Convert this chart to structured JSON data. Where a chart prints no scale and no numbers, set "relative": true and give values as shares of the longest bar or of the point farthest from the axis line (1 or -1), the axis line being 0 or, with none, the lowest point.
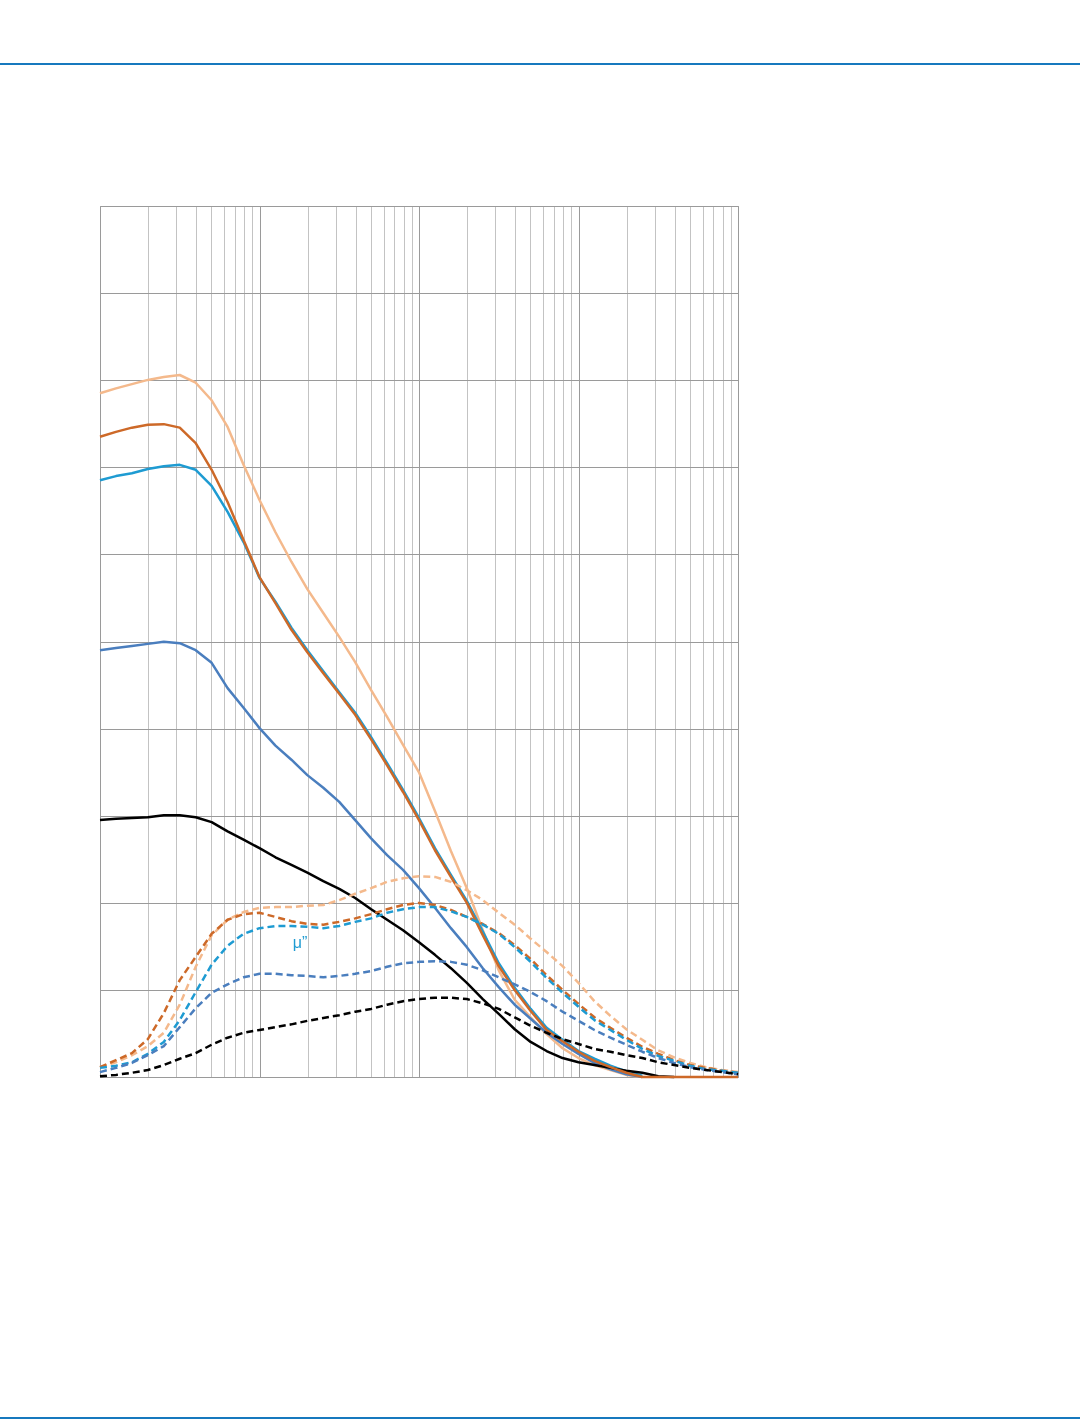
{
  "chart_data": {
    "type": "line",
    "relative": true,
    "grid": true,
    "line_style": "solid",
    "categories": [
      null,
      null,
      null,
      null,
      null,
      null,
      null,
      null,
      null,
      null,
      null,
      null,
      null,
      null,
      null,
      null,
      null,
      null,
      null,
      null,
      null,
      null,
      null,
      null,
      null,
      null,
      null,
      null,
      null,
      null,
      null,
      null,
      null,
      null,
      null,
      null,
      null,
      null,
      null,
      null,
      null
    ],
    "series": [
      {
        "color": "#f4b98c",
        "values": [
          0.974,
          0.981,
          0.987,
          0.993,
          0.997,
          1,
          0.989,
          0.964,
          0.926,
          0.872,
          0.822,
          0.776,
          0.734,
          0.695,
          0.661,
          0.627,
          0.591,
          0.551,
          0.513,
          0.473,
          0.434,
          0.379,
          0.322,
          0.269,
          0.209,
          0.152,
          0.11,
          0.085,
          0.061,
          0.041,
          0.027,
          0.017,
          0.01,
          0.003,
          0,
          null,
          null,
          null,
          null,
          null,
          null
        ]
      },
      {
        "color": "#1e9bd2",
        "values": [
          0.85,
          0.856,
          0.86,
          0.866,
          0.87,
          0.872,
          0.865,
          0.842,
          0.805,
          0.762,
          0.711,
          0.677,
          0.64,
          0.608,
          0.578,
          0.548,
          0.519,
          0.484,
          0.447,
          0.409,
          0.369,
          0.326,
          0.288,
          0.251,
          0.207,
          0.162,
          0.127,
          0.097,
          0.07,
          0.053,
          0.037,
          0.026,
          0.016,
          0.008,
          0.002,
          null,
          null,
          null,
          null,
          null,
          null
        ]
      },
      {
        "color": "#4a7ebe",
        "values": [
          0.608,
          0.611,
          0.614,
          0.617,
          0.62,
          0.618,
          0.608,
          0.59,
          0.554,
          0.526,
          0.497,
          0.472,
          0.452,
          0.43,
          0.412,
          0.392,
          0.366,
          0.34,
          0.316,
          0.295,
          0.269,
          0.241,
          0.212,
          0.185,
          0.155,
          0.128,
          0.103,
          0.083,
          0.063,
          0.047,
          0.033,
          0.02,
          0.011,
          0.004,
          0,
          null,
          null,
          null,
          null,
          null,
          null
        ]
      },
      {
        "color": "#000000",
        "values": [
          0.366,
          0.368,
          0.369,
          0.37,
          0.373,
          0.373,
          0.37,
          0.363,
          0.35,
          0.338,
          0.326,
          0.313,
          0.302,
          0.291,
          0.279,
          0.268,
          0.255,
          0.239,
          0.224,
          0.209,
          0.192,
          0.174,
          0.155,
          0.134,
          0.111,
          0.09,
          0.068,
          0.05,
          0.037,
          0.027,
          0.021,
          0.017,
          0.013,
          0.009,
          0.006,
          0.001,
          0,
          null,
          null,
          null,
          null
        ]
      },
      {
        "color": "#cd6928",
        "values": [
          0.912,
          0.919,
          0.925,
          0.929,
          0.93,
          0.925,
          0.903,
          0.865,
          0.819,
          0.765,
          0.712,
          0.675,
          0.637,
          0.605,
          0.575,
          0.546,
          0.516,
          0.481,
          0.444,
          0.406,
          0.366,
          0.323,
          0.285,
          0.248,
          0.202,
          0.158,
          0.124,
          0.094,
          0.067,
          0.051,
          0.036,
          0.023,
          0.014,
          0.006,
          0,
          0,
          0,
          0,
          0,
          0,
          0
        ]
      },
      {
        "color": "#f4b98c",
        "line_style": "dashed",
        "values": [
          0.014,
          0.021,
          0.031,
          0.044,
          0.063,
          0.103,
          0.157,
          0.202,
          0.224,
          0.235,
          0.241,
          0.242,
          0.242,
          0.244,
          0.245,
          0.252,
          0.261,
          0.269,
          0.278,
          0.283,
          0.286,
          0.285,
          0.278,
          0.266,
          0.252,
          0.234,
          0.217,
          0.197,
          0.178,
          0.158,
          0.134,
          0.108,
          0.087,
          0.068,
          0.053,
          0.038,
          0.028,
          0.02,
          0.014,
          0.01,
          0.007
        ]
      },
      {
        "color": "#cd6928",
        "line_style": "dashed",
        "values": [
          0.014,
          0.024,
          0.034,
          0.054,
          0.091,
          0.138,
          0.171,
          0.204,
          0.224,
          0.232,
          0.234,
          0.228,
          0.222,
          0.218,
          0.217,
          0.221,
          0.226,
          0.232,
          0.239,
          0.245,
          0.248,
          0.245,
          0.238,
          0.228,
          0.218,
          0.205,
          0.188,
          0.168,
          0.145,
          0.124,
          0.104,
          0.085,
          0.07,
          0.056,
          0.043,
          0.033,
          0.024,
          0.017,
          0.013,
          0.009,
          0.006
        ]
      },
      {
        "name": "μ”",
        "color": "#1e9bd2",
        "line_style": "dashed",
        "values": [
          0.013,
          0.016,
          0.021,
          0.033,
          0.05,
          0.081,
          0.121,
          0.16,
          0.187,
          0.204,
          0.212,
          0.215,
          0.215,
          0.214,
          0.212,
          0.215,
          0.221,
          0.226,
          0.234,
          0.239,
          0.242,
          0.242,
          0.236,
          0.228,
          0.217,
          0.204,
          0.185,
          0.164,
          0.141,
          0.12,
          0.1,
          0.081,
          0.067,
          0.053,
          0.04,
          0.03,
          0.023,
          0.016,
          0.011,
          0.009,
          0.006
        ]
      },
      {
        "color": "#4a7ebe",
        "line_style": "dashed",
        "values": [
          0.007,
          0.013,
          0.02,
          0.031,
          0.044,
          0.071,
          0.098,
          0.12,
          0.132,
          0.142,
          0.147,
          0.147,
          0.145,
          0.144,
          0.142,
          0.144,
          0.147,
          0.151,
          0.157,
          0.162,
          0.164,
          0.165,
          0.164,
          0.16,
          0.152,
          0.142,
          0.132,
          0.121,
          0.108,
          0.093,
          0.08,
          0.067,
          0.056,
          0.046,
          0.036,
          0.027,
          0.02,
          0.014,
          0.01,
          0.007,
          0.004
        ]
      },
      {
        "color": "#000000",
        "line_style": "dashed",
        "values": [
          0.001,
          0.003,
          0.006,
          0.01,
          0.017,
          0.026,
          0.034,
          0.046,
          0.056,
          0.063,
          0.067,
          0.071,
          0.075,
          0.08,
          0.084,
          0.088,
          0.093,
          0.097,
          0.103,
          0.108,
          0.111,
          0.113,
          0.113,
          0.111,
          0.105,
          0.097,
          0.085,
          0.073,
          0.063,
          0.054,
          0.047,
          0.04,
          0.036,
          0.031,
          0.027,
          0.021,
          0.017,
          0.013,
          0.01,
          0.007,
          0.004
        ]
      }
    ]
  }
}
